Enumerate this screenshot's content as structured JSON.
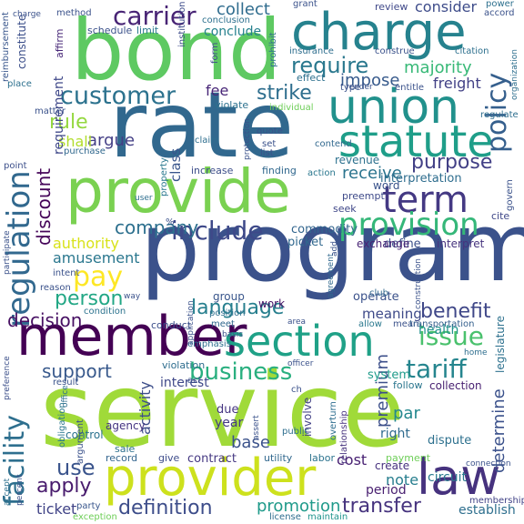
{
  "words": [
    {
      "text": "service",
      "color": "#a0da39"
    },
    {
      "text": "program",
      "color": "#3b528b"
    },
    {
      "text": "bond",
      "color": "#5ec962"
    },
    {
      "text": "rate",
      "color": "#31688e"
    },
    {
      "text": "provide",
      "color": "#7ad151"
    },
    {
      "text": "charge",
      "color": "#26828e"
    },
    {
      "text": "union",
      "color": "#21918c"
    },
    {
      "text": "statute",
      "color": "#1f9e89"
    },
    {
      "text": "provider",
      "color": "#cde11d"
    },
    {
      "text": "member",
      "color": "#440154"
    },
    {
      "text": "section",
      "color": "#1fa187"
    },
    {
      "text": "regulation",
      "color": "#31688e"
    },
    {
      "text": "law",
      "color": "#46327e"
    },
    {
      "text": "term",
      "color": "#443983"
    },
    {
      "text": "provision",
      "color": "#35b779"
    },
    {
      "text": "customer",
      "color": "#2c728e"
    },
    {
      "text": "carrier",
      "color": "#482475"
    },
    {
      "text": "policy",
      "color": "#355f8d"
    },
    {
      "text": "require",
      "color": "#2a788e"
    },
    {
      "text": "include",
      "color": "#3e4989"
    },
    {
      "text": "facility",
      "color": "#2e6f8e"
    },
    {
      "text": "business",
      "color": "#29af7f"
    },
    {
      "text": "issue",
      "color": "#4ac16d"
    },
    {
      "text": "tariff",
      "color": "#25858e"
    },
    {
      "text": "purpose",
      "color": "#424086"
    },
    {
      "text": "benefit",
      "color": "#3f4788"
    },
    {
      "text": "pay",
      "color": "#fde725"
    },
    {
      "text": "decision",
      "color": "#471063"
    },
    {
      "text": "language",
      "color": "#277f8e"
    },
    {
      "text": "person",
      "color": "#22a785"
    },
    {
      "text": "company",
      "color": "#2d708e"
    },
    {
      "text": "strike",
      "color": "#2e6e8e"
    },
    {
      "text": "support",
      "color": "#38598c"
    },
    {
      "text": "definition",
      "color": "#3d4d8a"
    },
    {
      "text": "use",
      "color": "#3a548c"
    },
    {
      "text": "apply",
      "color": "#481b6d"
    },
    {
      "text": "transfer",
      "color": "#46337e"
    },
    {
      "text": "promotion",
      "color": "#1f9a8a"
    },
    {
      "text": "discount",
      "color": "#450559"
    },
    {
      "text": "determine",
      "color": "#3b518b"
    },
    {
      "text": "collect",
      "color": "#2f6c8e"
    },
    {
      "text": "majority",
      "color": "#38b977"
    },
    {
      "text": "rule",
      "color": "#95d840"
    },
    {
      "text": "argue",
      "color": "#433e85"
    },
    {
      "text": "amusement",
      "color": "#2a778e"
    },
    {
      "text": "authority",
      "color": "#d8e219"
    },
    {
      "text": "receive",
      "color": "#2b748e"
    },
    {
      "text": "ticket",
      "color": "#414487"
    },
    {
      "text": "premium",
      "color": "#3c4f8a"
    },
    {
      "text": "activity",
      "color": "#3d4e8a"
    },
    {
      "text": "note",
      "color": "#277e8e"
    },
    {
      "text": "par",
      "color": "#23888e"
    },
    {
      "text": "base",
      "color": "#3b528b"
    },
    {
      "text": "fee",
      "color": "#482677"
    },
    {
      "text": "impose",
      "color": "#375a8c"
    },
    {
      "text": "conclude",
      "color": "#26818e"
    },
    {
      "text": "shall",
      "color": "#b2dd2d"
    },
    {
      "text": "class",
      "color": "#39558c"
    },
    {
      "text": "requirement",
      "color": "#3f4889"
    },
    {
      "text": "freight",
      "color": "#424186"
    },
    {
      "text": "meaning",
      "color": "#3e4a89"
    },
    {
      "text": "interpretation",
      "color": "#2e6d8e"
    },
    {
      "text": "commodity",
      "color": "#32658e"
    },
    {
      "text": "consider",
      "color": "#3e4c8a"
    },
    {
      "text": "revenue",
      "color": "#2c718e"
    },
    {
      "text": "word",
      "color": "#3a538b"
    },
    {
      "text": "health",
      "color": "#20928c"
    },
    {
      "text": "legislature",
      "color": "#2d718e"
    },
    {
      "text": "system",
      "color": "#1e9b8a"
    },
    {
      "text": "interest",
      "color": "#3f4889"
    },
    {
      "text": "contract",
      "color": "#453882"
    },
    {
      "text": "year",
      "color": "#443a83"
    },
    {
      "text": "due",
      "color": "#453581"
    },
    {
      "text": "circuit",
      "color": "#29798e"
    },
    {
      "text": "dispute",
      "color": "#2d708e"
    },
    {
      "text": "collection",
      "color": "#482071"
    },
    {
      "text": "cost",
      "color": "#482173"
    },
    {
      "text": "period",
      "color": "#481f70"
    },
    {
      "text": "right",
      "color": "#2f6b8e"
    },
    {
      "text": "create",
      "color": "#46307e"
    },
    {
      "text": "establish",
      "color": "#2e6f8e"
    },
    {
      "text": "payment",
      "color": "#6ece58"
    },
    {
      "text": "membership",
      "color": "#414387"
    },
    {
      "text": "define",
      "color": "#3c4f8a"
    },
    {
      "text": "group",
      "color": "#39568c"
    },
    {
      "text": "work",
      "color": "#481467"
    },
    {
      "text": "operate",
      "color": "#3b528b"
    },
    {
      "text": "exchange",
      "color": "#482475"
    },
    {
      "text": "interpret",
      "color": "#46337e"
    },
    {
      "text": "picket",
      "color": "#31688e"
    },
    {
      "text": "agency",
      "color": "#453581"
    },
    {
      "text": "control",
      "color": "#2c728e"
    },
    {
      "text": "record",
      "color": "#32648e"
    },
    {
      "text": "sale",
      "color": "#2d708e"
    },
    {
      "text": "give",
      "color": "#3e4c8a"
    },
    {
      "text": "utility",
      "color": "#31688e"
    },
    {
      "text": "labor",
      "color": "#2c738e"
    },
    {
      "text": "involve",
      "color": "#424086"
    },
    {
      "text": "follow",
      "color": "#2a768e"
    },
    {
      "text": "overturn",
      "color": "#2e6e8e"
    },
    {
      "text": "relationship",
      "color": "#46327e"
    },
    {
      "text": "license",
      "color": "#2e6d8e"
    },
    {
      "text": "maintain",
      "color": "#1f948c"
    },
    {
      "text": "exception",
      "color": "#6ece58"
    },
    {
      "text": "party",
      "color": "#39568c"
    },
    {
      "text": "result",
      "color": "#3a538b"
    },
    {
      "text": "violation",
      "color": "#2e6d8e"
    },
    {
      "text": "obligation",
      "color": "#2a778e"
    },
    {
      "text": "argument",
      "color": "#3b528b"
    },
    {
      "text": "emphasis",
      "color": "#2e6f8e"
    },
    {
      "text": "conduct",
      "color": "#3c4f8a"
    },
    {
      "text": "meet",
      "color": "#31688e"
    },
    {
      "text": "mean",
      "color": "#3b528b"
    },
    {
      "text": "transportation",
      "color": "#35608d"
    },
    {
      "text": "allow",
      "color": "#2a788e"
    },
    {
      "text": "position",
      "color": "#2e6e8e"
    },
    {
      "text": "condition",
      "color": "#2c738e"
    },
    {
      "text": "reason",
      "color": "#3b528b"
    },
    {
      "text": "intent",
      "color": "#3b528b"
    },
    {
      "text": "place",
      "color": "#2d708e"
    },
    {
      "text": "point",
      "color": "#3c4f8a"
    },
    {
      "text": "purchase",
      "color": "#31688e"
    },
    {
      "text": "increase",
      "color": "#3d4e8a"
    },
    {
      "text": "finding",
      "color": "#31688e"
    },
    {
      "text": "action",
      "color": "#2a778e"
    },
    {
      "text": "preempt",
      "color": "#3e4a89"
    },
    {
      "text": "seek",
      "color": "#3f4788"
    },
    {
      "text": "cite",
      "color": "#3f4788"
    },
    {
      "text": "govern",
      "color": "#3b528b"
    },
    {
      "text": "contend",
      "color": "#31688e"
    },
    {
      "text": "claim",
      "color": "#2e6e8e"
    },
    {
      "text": "quote",
      "color": "#3b528b"
    },
    {
      "text": "list",
      "color": "#3b528b"
    },
    {
      "text": "set",
      "color": "#3b528b"
    },
    {
      "text": "effect",
      "color": "#2d708e"
    },
    {
      "text": "prohibit",
      "color": "#2e6e8e"
    },
    {
      "text": "insurance",
      "color": "#2e6e8e"
    },
    {
      "text": "type",
      "color": "#3b528b"
    },
    {
      "text": "entitle",
      "color": "#3b528b"
    },
    {
      "text": "render",
      "color": "#3b528b"
    },
    {
      "text": "violate",
      "color": "#2c718e"
    },
    {
      "text": "individual",
      "color": "#6ece58"
    },
    {
      "text": "limit",
      "color": "#2a788e"
    },
    {
      "text": "schedule",
      "color": "#3b528b"
    },
    {
      "text": "institution",
      "color": "#3e4c8a"
    },
    {
      "text": "form",
      "color": "#3e4c8a"
    },
    {
      "text": "conclusion",
      "color": "#2d708e"
    },
    {
      "text": "citation",
      "color": "#2d708e"
    },
    {
      "text": "construe",
      "color": "#3b528b"
    },
    {
      "text": "review",
      "color": "#3f4889"
    },
    {
      "text": "grant",
      "color": "#3b528b"
    },
    {
      "text": "power",
      "color": "#2d708e"
    },
    {
      "text": "accord",
      "color": "#3b528b"
    },
    {
      "text": "regulate",
      "color": "#2e6e8e"
    },
    {
      "text": "organization",
      "color": "#2e6f8e"
    },
    {
      "text": "reimbursement",
      "color": "#39568c"
    },
    {
      "text": "constitute",
      "color": "#3c4f8a"
    },
    {
      "text": "charge",
      "color": "#3b528b"
    },
    {
      "text": "method",
      "color": "#3b528b"
    },
    {
      "text": "affirm",
      "color": "#482878"
    },
    {
      "text": "matter",
      "color": "#3b528b"
    },
    {
      "text": "property",
      "color": "#2a788e"
    },
    {
      "text": "application",
      "color": "#3b528b"
    },
    {
      "text": "public",
      "color": "#2e6e8e"
    },
    {
      "text": "act",
      "color": "#3b528b"
    },
    {
      "text": "office",
      "color": "#2e6e8e"
    },
    {
      "text": "participate",
      "color": "#3b528b"
    },
    {
      "text": "preference",
      "color": "#3c4f8a"
    },
    {
      "text": "accept",
      "color": "#2d708e"
    },
    {
      "text": "percent",
      "color": "#3b528b"
    },
    {
      "text": "club",
      "color": "#31688e"
    },
    {
      "text": "agreement",
      "color": "#31688e"
    },
    {
      "text": "construction",
      "color": "#3b528b"
    },
    {
      "text": "connection",
      "color": "#3b528b"
    },
    {
      "text": "area",
      "color": "#3b528b"
    },
    {
      "text": "basis",
      "color": "#3b528b"
    },
    {
      "text": "assert",
      "color": "#3b528b"
    },
    {
      "text": "home",
      "color": "#2e6e8e"
    },
    {
      "text": "officer",
      "color": "#3b528b"
    },
    {
      "text": "protection",
      "color": "#3b528b"
    },
    {
      "text": "user",
      "color": "#2e6e8e"
    },
    {
      "text": "way",
      "color": "#3b528b"
    },
    {
      "text": "add",
      "color": "#3b528b"
    },
    {
      "text": "ch",
      "color": "#3b528b"
    },
    {
      "text": "%",
      "color": "#3b528b"
    }
  ]
}
